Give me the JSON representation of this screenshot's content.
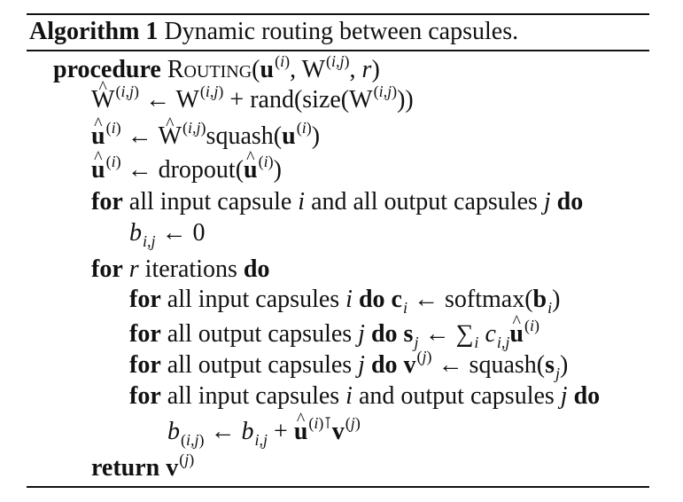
{
  "caption": {
    "label": "Algorithm 1",
    "title": "Dynamic routing between capsules."
  },
  "kw": {
    "procedure": "procedure",
    "routing": "Routing",
    "for": "for",
    "do": "do",
    "return": "return"
  },
  "text": {
    "rand_size": "rand(size(",
    "squash": "squash",
    "dropout": "dropout",
    "all_input_capsule": "all input capsule",
    "and_all_output_capsules": "and all output capsules",
    "iterations": "iterations",
    "all_input_capsules": "all input capsules",
    "all_output_capsules": "all output capsules",
    "and_output_capsules": "and output capsules",
    "softmax": "softmax",
    "zero": "0"
  }
}
